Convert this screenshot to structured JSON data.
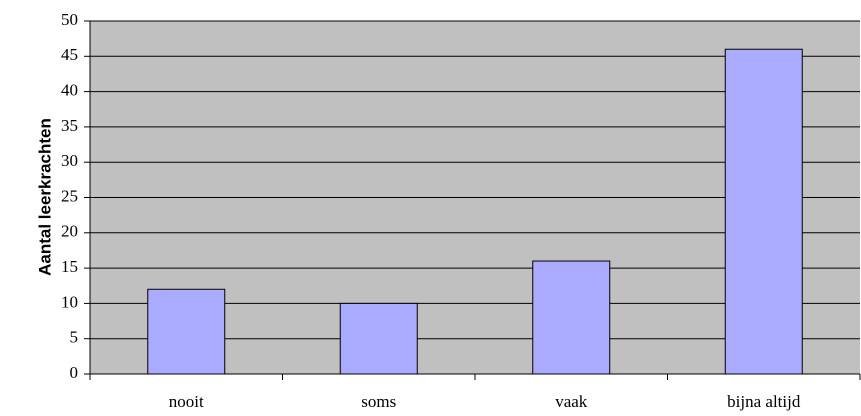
{
  "chart_data": {
    "type": "bar",
    "y_label": "Aantal leerkrachten",
    "categories": [
      "nooit",
      "soms",
      "vaak",
      "bijna altijd"
    ],
    "values": [
      12,
      10,
      16,
      46
    ],
    "color": "#aaaaff",
    "ylim": [
      0,
      50
    ],
    "yticks": [
      0,
      5,
      10,
      15,
      20,
      25,
      30,
      35,
      40,
      45,
      50
    ],
    "grid": true
  }
}
